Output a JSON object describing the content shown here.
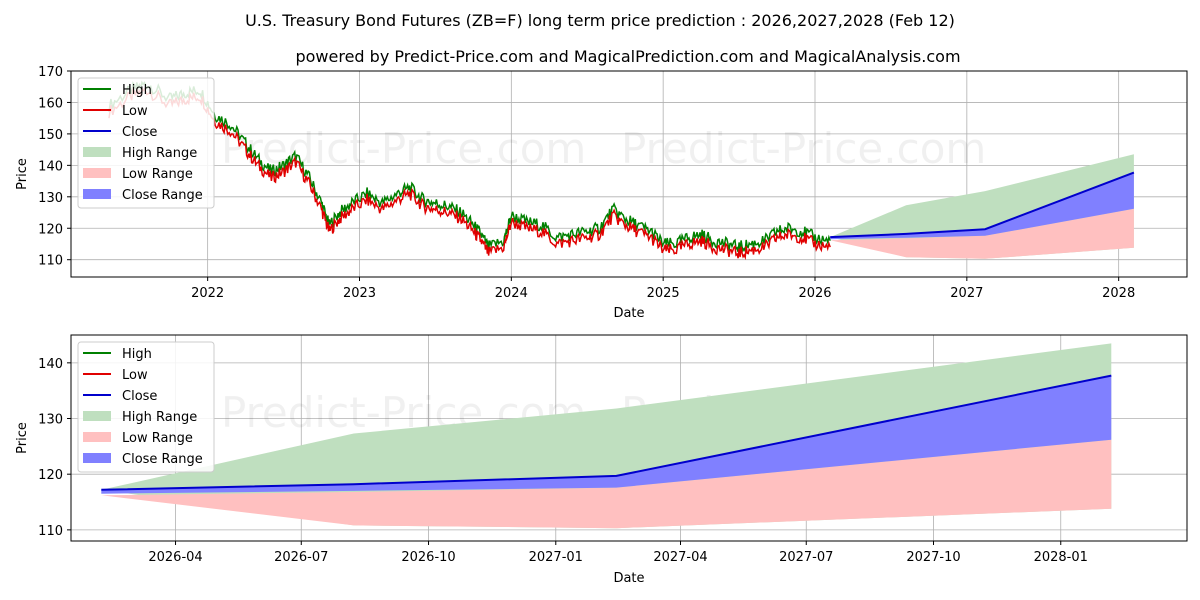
{
  "title": "U.S. Treasury Bond Futures (ZB=F) long term price prediction : 2026,2027,2028 (Feb 12)",
  "subtitle": "powered by Predict-Price.com and MagicalPrediction.com and MagicalAnalysis.com",
  "watermark": "Predict-Price.com",
  "colors": {
    "high": "#008000",
    "low": "#e00000",
    "close": "#0000cc",
    "high_range": "#bfdfbf",
    "low_range": "#ffc0c0",
    "close_range": "#8080ff"
  },
  "chart_data": [
    {
      "type": "line",
      "id": "top",
      "xlabel": "Date",
      "ylabel": "Price",
      "xlim": [
        2021.1,
        2028.45
      ],
      "ylim": [
        104.5,
        170
      ],
      "xticks": [
        {
          "v": 2022,
          "label": "2022"
        },
        {
          "v": 2023,
          "label": "2023"
        },
        {
          "v": 2024,
          "label": "2024"
        },
        {
          "v": 2025,
          "label": "2025"
        },
        {
          "v": 2026,
          "label": "2026"
        },
        {
          "v": 2027,
          "label": "2027"
        },
        {
          "v": 2028,
          "label": "2028"
        }
      ],
      "yticks": [
        {
          "v": 110,
          "label": "110"
        },
        {
          "v": 120,
          "label": "120"
        },
        {
          "v": 130,
          "label": "130"
        },
        {
          "v": 140,
          "label": "140"
        },
        {
          "v": 150,
          "label": "150"
        },
        {
          "v": 160,
          "label": "160"
        },
        {
          "v": 170,
          "label": "170"
        }
      ],
      "history": {
        "x": [
          2021.35,
          2021.5,
          2021.6,
          2021.75,
          2021.85,
          2021.95,
          2022.05,
          2022.15,
          2022.25,
          2022.33,
          2022.42,
          2022.5,
          2022.58,
          2022.67,
          2022.75,
          2022.8,
          2022.87,
          2022.95,
          2023.05,
          2023.15,
          2023.25,
          2023.33,
          2023.42,
          2023.5,
          2023.58,
          2023.67,
          2023.75,
          2023.8,
          2023.85,
          2023.95,
          2024.0,
          2024.1,
          2024.2,
          2024.3,
          2024.4,
          2024.5,
          2024.58,
          2024.67,
          2024.75,
          2024.83,
          2024.92,
          2025.0,
          2025.08,
          2025.17,
          2025.25,
          2025.33,
          2025.42,
          2025.5,
          2025.58,
          2025.67,
          2025.75,
          2025.83,
          2025.92,
          2026.0,
          2026.1
        ],
        "values": [
          158,
          163,
          165,
          160,
          162,
          163,
          155,
          152,
          146,
          141,
          137,
          139,
          142,
          135,
          127,
          120,
          124,
          127,
          130,
          127,
          130,
          132,
          128,
          127,
          126,
          124,
          120,
          117,
          113,
          115,
          123,
          121,
          120,
          116,
          117,
          118,
          119,
          125,
          122,
          120,
          118,
          114,
          114,
          116,
          117,
          115,
          114,
          113,
          114,
          115,
          118,
          119,
          118,
          116,
          115
        ]
      },
      "forecast": {
        "x": [
          2026.1,
          2026.6,
          2027.12,
          2028.1
        ],
        "close": [
          117.2,
          118.2,
          119.7,
          137.7
        ],
        "high_range": [
          [
            117.2,
            117.2
          ],
          [
            110.8,
            127.3
          ],
          [
            110.3,
            131.8
          ],
          [
            113.8,
            143.5
          ]
        ],
        "low_range": [
          [
            116.2,
            116.2
          ],
          [
            110.8,
            116.8
          ],
          [
            110.3,
            117.6
          ],
          [
            113.8,
            126.2
          ]
        ],
        "close_range": [
          [
            116.5,
            117.2
          ],
          [
            117.0,
            118.2
          ],
          [
            117.6,
            119.7
          ],
          [
            126.2,
            137.7
          ]
        ]
      }
    },
    {
      "type": "line",
      "id": "bottom",
      "xlabel": "Date",
      "ylabel": "Price",
      "xlim": [
        2026.04,
        2028.25
      ],
      "ylim": [
        108,
        145
      ],
      "xticks": [
        {
          "v": 2026.247,
          "label": "2026-04"
        },
        {
          "v": 2026.496,
          "label": "2026-07"
        },
        {
          "v": 2026.748,
          "label": "2026-10"
        },
        {
          "v": 2027.0,
          "label": "2027-01"
        },
        {
          "v": 2027.247,
          "label": "2027-04"
        },
        {
          "v": 2027.496,
          "label": "2027-07"
        },
        {
          "v": 2027.748,
          "label": "2027-10"
        },
        {
          "v": 2028.0,
          "label": "2028-01"
        }
      ],
      "yticks": [
        {
          "v": 110,
          "label": "110"
        },
        {
          "v": 120,
          "label": "120"
        },
        {
          "v": 130,
          "label": "130"
        },
        {
          "v": 140,
          "label": "140"
        }
      ],
      "forecast": {
        "x": [
          2026.1,
          2026.6,
          2027.12,
          2028.1
        ],
        "close": [
          117.2,
          118.2,
          119.7,
          137.7
        ],
        "high_range": [
          [
            117.2,
            117.2
          ],
          [
            110.8,
            127.3
          ],
          [
            110.3,
            131.8
          ],
          [
            113.8,
            143.5
          ]
        ],
        "low_range": [
          [
            116.2,
            116.2
          ],
          [
            110.8,
            116.8
          ],
          [
            110.3,
            117.6
          ],
          [
            113.8,
            126.2
          ]
        ],
        "close_range": [
          [
            116.5,
            117.2
          ],
          [
            117.0,
            118.2
          ],
          [
            117.6,
            119.7
          ],
          [
            126.2,
            137.7
          ]
        ]
      }
    }
  ],
  "legend": [
    "High",
    "Low",
    "Close",
    "High Range",
    "Low Range",
    "Close Range"
  ]
}
